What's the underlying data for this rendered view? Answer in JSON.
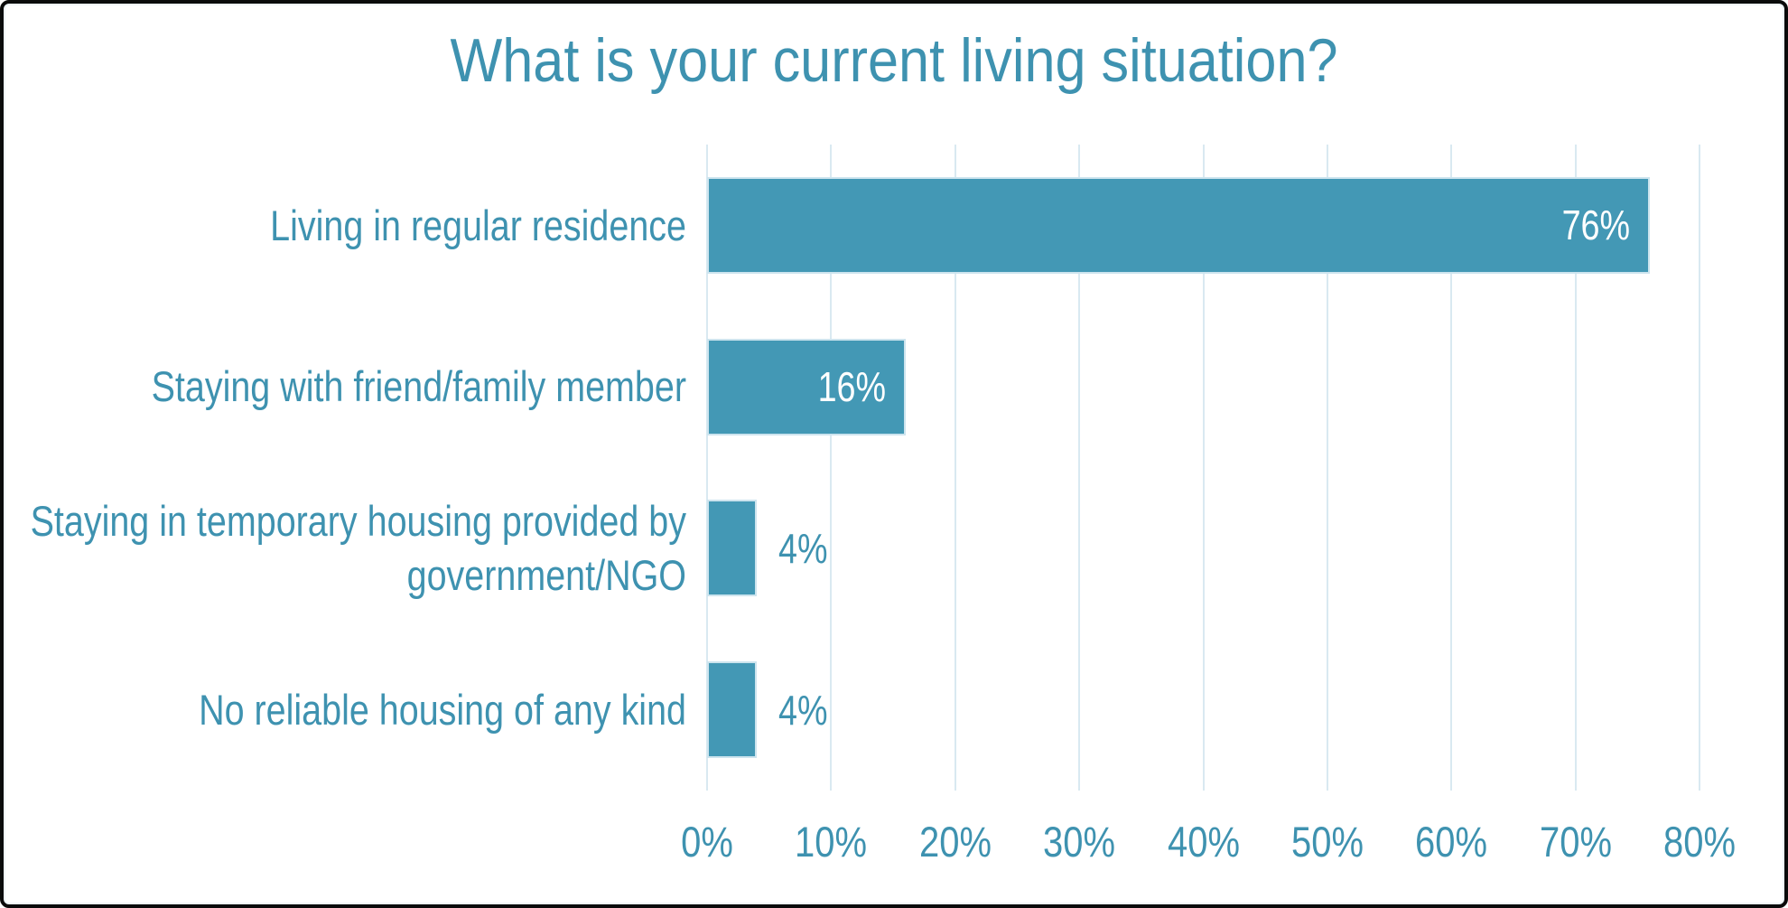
{
  "title": "What is your current living situation?",
  "colors": {
    "accent_bar": "#4398B5",
    "accent_text": "#3E92B0",
    "gridline": "#D9E9F1",
    "bar_halo": "#CDE4EE",
    "inside_value_label": "#FFFFFF",
    "frame_border": "#0B0B0B",
    "background": "#FFFFFF"
  },
  "chart_data": {
    "type": "bar",
    "orientation": "horizontal",
    "title": "What is your current living situation?",
    "categories": [
      "Living in regular residence",
      "Staying with friend/family member",
      "Staying in temporary housing provided by government/NGO",
      "No reliable housing of any kind"
    ],
    "values": [
      76,
      16,
      4,
      4
    ],
    "value_labels": [
      "76%",
      "16%",
      "4%",
      "4%"
    ],
    "value_label_positions": [
      "inside-end",
      "inside-end",
      "outside-end",
      "outside-end"
    ],
    "xlabel": "",
    "ylabel": "",
    "xlim": [
      0,
      80
    ],
    "x_tick_values": [
      0,
      10,
      20,
      30,
      40,
      50,
      60,
      70,
      80
    ],
    "x_tick_labels": [
      "0%",
      "10%",
      "20%",
      "30%",
      "40%",
      "50%",
      "60%",
      "70%",
      "80%"
    ],
    "grid": true,
    "legend": false
  }
}
